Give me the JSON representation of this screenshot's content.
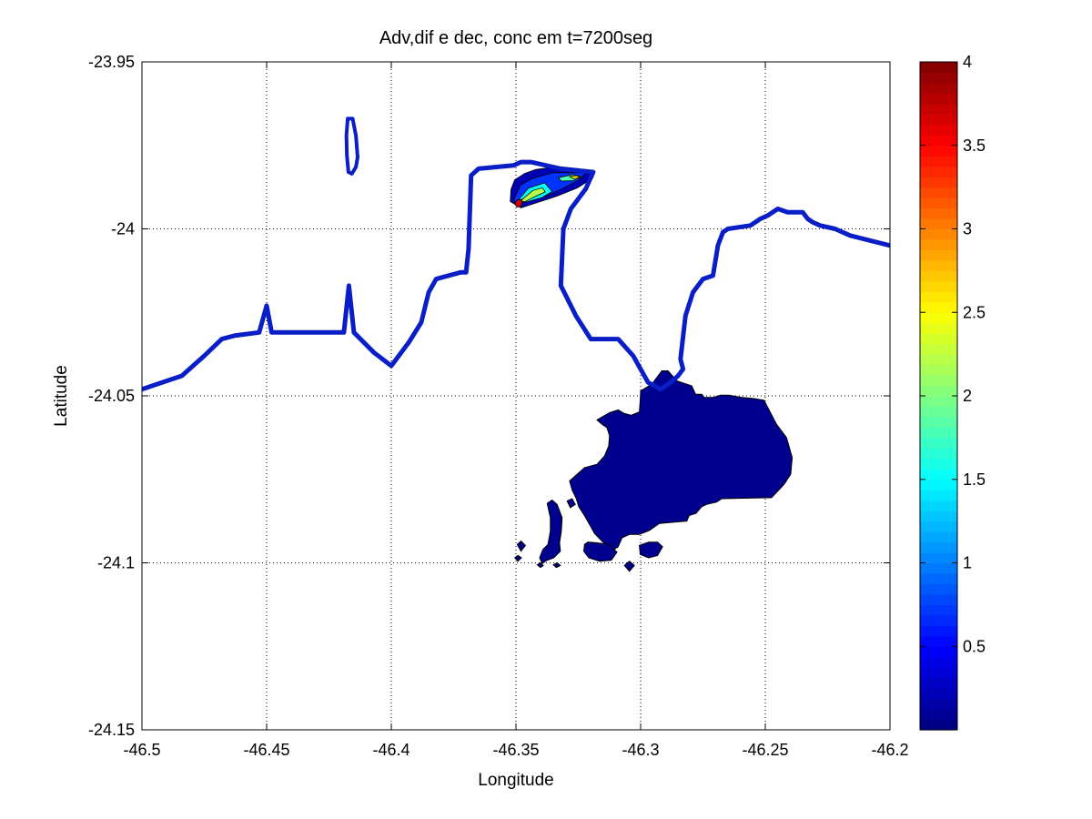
{
  "chart_data": {
    "type": "contour",
    "title": "Adv,dif e dec, conc em t=7200seg",
    "xlabel": "Longitude",
    "ylabel": "Latitude",
    "xlim": [
      -46.5,
      -46.2
    ],
    "ylim": [
      -24.15,
      -23.95
    ],
    "x_ticks": [
      -46.5,
      -46.45,
      -46.4,
      -46.35,
      -46.3,
      -46.25,
      -46.2
    ],
    "x_tick_labels": [
      "-46.5",
      "-46.45",
      "-46.4",
      "-46.35",
      "-46.3",
      "-46.25",
      "-46.2"
    ],
    "y_ticks": [
      -23.95,
      -24,
      -24.05,
      -24.1,
      -24.15
    ],
    "y_tick_labels": [
      "-23.95",
      "-24",
      "-24.05",
      "-24.1",
      "-24.15"
    ],
    "grid": true,
    "colormap": "jet",
    "colorbar": {
      "range": [
        0,
        4
      ],
      "ticks": [
        0.5,
        1,
        1.5,
        2,
        2.5,
        3,
        3.5,
        4
      ],
      "tick_labels": [
        "0.5",
        "1",
        "1.5",
        "2",
        "2.5",
        "3",
        "3.5",
        "4"
      ]
    },
    "coastline_color": "#0a1ec8",
    "coastline": [
      [
        -46.5,
        -24.048
      ],
      [
        -46.484,
        -24.044
      ],
      [
        -46.475,
        -24.038
      ],
      [
        -46.468,
        -24.033
      ],
      [
        -46.463,
        -24.032
      ],
      [
        -46.453,
        -24.031
      ],
      [
        -46.45,
        -24.023
      ],
      [
        -46.448,
        -24.031
      ],
      [
        -46.437,
        -24.031
      ],
      [
        -46.419,
        -24.031
      ],
      [
        -46.417,
        -24.017
      ],
      [
        -46.415,
        -24.031
      ],
      [
        -46.407,
        -24.037
      ],
      [
        -46.4,
        -24.041
      ],
      [
        -46.393,
        -24.034
      ],
      [
        -46.388,
        -24.028
      ],
      [
        -46.385,
        -24.019
      ],
      [
        -46.382,
        -24.015
      ],
      [
        -46.372,
        -24.013
      ],
      [
        -46.37,
        -24.013
      ],
      [
        -46.369,
        -24.006
      ],
      [
        -46.368,
        -23.984
      ],
      [
        -46.365,
        -23.982
      ],
      [
        -46.351,
        -23.981
      ],
      [
        -46.348,
        -23.98
      ],
      [
        -46.344,
        -23.98
      ],
      [
        -46.332,
        -23.982
      ],
      [
        -46.319,
        -23.983
      ],
      [
        -46.322,
        -23.988
      ],
      [
        -46.328,
        -23.994
      ],
      [
        -46.331,
        -24.0
      ],
      [
        -46.332,
        -24.017
      ],
      [
        -46.326,
        -24.026
      ],
      [
        -46.32,
        -24.033
      ],
      [
        -46.309,
        -24.033
      ],
      [
        -46.303,
        -24.038
      ],
      [
        -46.297,
        -24.046
      ],
      [
        -46.292,
        -24.048
      ],
      [
        -46.288,
        -24.046
      ],
      [
        -46.285,
        -24.044
      ],
      [
        -46.283,
        -24.042
      ],
      [
        -46.284,
        -24.039
      ],
      [
        -46.282,
        -24.026
      ],
      [
        -46.279,
        -24.019
      ],
      [
        -46.275,
        -24.015
      ],
      [
        -46.271,
        -24.014
      ],
      [
        -46.269,
        -24.005
      ],
      [
        -46.267,
        -24.001
      ],
      [
        -46.265,
        -24.0
      ],
      [
        -46.256,
        -23.999
      ],
      [
        -46.252,
        -23.997
      ],
      [
        -46.249,
        -23.996
      ],
      [
        -46.245,
        -23.994
      ],
      [
        -46.241,
        -23.995
      ],
      [
        -46.235,
        -23.995
      ],
      [
        -46.233,
        -23.997
      ],
      [
        -46.231,
        -23.998
      ],
      [
        -46.228,
        -23.999
      ],
      [
        -46.222,
        -24.0
      ],
      [
        -46.216,
        -24.002
      ],
      [
        -46.2,
        -24.005
      ]
    ],
    "islands": [
      [
        [
          -46.4175,
          -23.967
        ],
        [
          -46.4155,
          -23.967
        ],
        [
          -46.4142,
          -23.972
        ],
        [
          -46.4135,
          -23.9785
        ],
        [
          -46.4142,
          -23.9815
        ],
        [
          -46.4158,
          -23.9835
        ],
        [
          -46.4172,
          -23.983
        ],
        [
          -46.4178,
          -23.978
        ],
        [
          -46.418,
          -23.972
        ]
      ]
    ],
    "plume": [
      {
        "level": 0.2,
        "polygon": [
          [
            -46.352,
            -23.9882
          ],
          [
            -46.3505,
            -23.9853
          ],
          [
            -46.3465,
            -23.9834
          ],
          [
            -46.342,
            -23.9822
          ],
          [
            -46.3328,
            -23.9814
          ],
          [
            -46.3185,
            -23.9828
          ],
          [
            -46.3192,
            -23.9848
          ],
          [
            -46.3255,
            -23.9878
          ],
          [
            -46.3335,
            -23.9902
          ],
          [
            -46.3418,
            -23.9922
          ],
          [
            -46.348,
            -23.9937
          ],
          [
            -46.3523,
            -23.9918
          ]
        ]
      },
      {
        "level": 0.7,
        "polygon": [
          [
            -46.3508,
            -23.9912
          ],
          [
            -46.3482,
            -23.9869
          ],
          [
            -46.343,
            -23.9848
          ],
          [
            -46.335,
            -23.9832
          ],
          [
            -46.322,
            -23.9832
          ],
          [
            -46.3245,
            -23.9853
          ],
          [
            -46.331,
            -23.9878
          ],
          [
            -46.3378,
            -23.9902
          ],
          [
            -46.3455,
            -23.9918
          ],
          [
            -46.3502,
            -23.9925
          ]
        ]
      },
      {
        "level": 1.5,
        "polygon": [
          [
            -46.3495,
            -23.9918
          ],
          [
            -46.345,
            -23.9878
          ],
          [
            -46.3385,
            -23.9862
          ],
          [
            -46.3355,
            -23.9888
          ],
          [
            -46.3395,
            -23.9906
          ],
          [
            -46.3465,
            -23.9921
          ]
        ]
      },
      {
        "level": 1.8,
        "polygon": [
          [
            -46.333,
            -23.9847
          ],
          [
            -46.3272,
            -23.9837
          ],
          [
            -46.3232,
            -23.9845
          ],
          [
            -46.3275,
            -23.9856
          ],
          [
            -46.3318,
            -23.9857
          ]
        ]
      },
      {
        "level": 2.2,
        "polygon": [
          [
            -46.3485,
            -23.9918
          ],
          [
            -46.3432,
            -23.9885
          ],
          [
            -46.3395,
            -23.9877
          ],
          [
            -46.3382,
            -23.9889
          ],
          [
            -46.3428,
            -23.9905
          ],
          [
            -46.3462,
            -23.9918
          ]
        ]
      },
      {
        "level": 2.6,
        "polygon": [
          [
            -46.3285,
            -23.9844
          ],
          [
            -46.3258,
            -23.984
          ],
          [
            -46.3242,
            -23.9846
          ],
          [
            -46.3268,
            -23.985
          ]
        ]
      },
      {
        "level": 3.7,
        "polygon": [
          [
            -46.3505,
            -23.9925
          ],
          [
            -46.3495,
            -23.9913
          ],
          [
            -46.3475,
            -23.9912
          ],
          [
            -46.3478,
            -23.9932
          ],
          [
            -46.3496,
            -23.9935
          ]
        ]
      }
    ],
    "low_region": {
      "level": 0.02,
      "polygons": [
        [
          [
            -46.3,
            -24.0485
          ],
          [
            -46.2955,
            -24.0465
          ],
          [
            -46.2935,
            -24.0445
          ],
          [
            -46.2915,
            -24.0425
          ],
          [
            -46.289,
            -24.0425
          ],
          [
            -46.2855,
            -24.0455
          ],
          [
            -46.2815,
            -24.0465
          ],
          [
            -46.2795,
            -24.047
          ],
          [
            -46.278,
            -24.0495
          ],
          [
            -46.2755,
            -24.0495
          ],
          [
            -46.2745,
            -24.0505
          ],
          [
            -46.271,
            -24.0505
          ],
          [
            -46.268,
            -24.0498
          ],
          [
            -46.2645,
            -24.0498
          ],
          [
            -46.2595,
            -24.0505
          ],
          [
            -46.2548,
            -24.0508
          ],
          [
            -46.2505,
            -24.0513
          ],
          [
            -46.2455,
            -24.0585
          ],
          [
            -46.2415,
            -24.0625
          ],
          [
            -46.2392,
            -24.0685
          ],
          [
            -46.2398,
            -24.0735
          ],
          [
            -46.2425,
            -24.0765
          ],
          [
            -46.2475,
            -24.0805
          ],
          [
            -46.2545,
            -24.0806
          ],
          [
            -46.2675,
            -24.0808
          ],
          [
            -46.2695,
            -24.0818
          ],
          [
            -46.2735,
            -24.0825
          ],
          [
            -46.2755,
            -24.0832
          ],
          [
            -46.2778,
            -24.0852
          ],
          [
            -46.2805,
            -24.0858
          ],
          [
            -46.2815,
            -24.0875
          ],
          [
            -46.2865,
            -24.0878
          ],
          [
            -46.2925,
            -24.0882
          ],
          [
            -46.2965,
            -24.0903
          ],
          [
            -46.3005,
            -24.0915
          ],
          [
            -46.3045,
            -24.0915
          ],
          [
            -46.3075,
            -24.0925
          ],
          [
            -46.309,
            -24.0952
          ],
          [
            -46.3118,
            -24.0965
          ],
          [
            -46.3125,
            -24.0958
          ],
          [
            -46.3155,
            -24.0935
          ],
          [
            -46.3185,
            -24.0912
          ],
          [
            -46.3205,
            -24.0885
          ],
          [
            -46.3228,
            -24.0855
          ],
          [
            -46.3248,
            -24.0832
          ],
          [
            -46.3258,
            -24.0808
          ],
          [
            -46.3275,
            -24.0782
          ],
          [
            -46.3285,
            -24.0755
          ],
          [
            -46.3255,
            -24.0735
          ],
          [
            -46.3225,
            -24.0715
          ],
          [
            -46.3175,
            -24.0705
          ],
          [
            -46.3145,
            -24.068
          ],
          [
            -46.3128,
            -24.065
          ],
          [
            -46.3125,
            -24.062
          ],
          [
            -46.3135,
            -24.0595
          ],
          [
            -46.3155,
            -24.0585
          ],
          [
            -46.3175,
            -24.0572
          ],
          [
            -46.3125,
            -24.055
          ],
          [
            -46.309,
            -24.0542
          ],
          [
            -46.3068,
            -24.0552
          ],
          [
            -46.3038,
            -24.0558
          ],
          [
            -46.3005,
            -24.0548
          ],
          [
            -46.3002,
            -24.0515
          ]
        ],
        [
          [
            -46.3375,
            -24.0822
          ],
          [
            -46.3355,
            -24.0812
          ],
          [
            -46.3335,
            -24.0825
          ],
          [
            -46.3315,
            -24.0865
          ],
          [
            -46.3318,
            -24.0905
          ],
          [
            -46.3325,
            -24.094
          ],
          [
            -46.3322,
            -24.0965
          ],
          [
            -46.3348,
            -24.0985
          ],
          [
            -46.3375,
            -24.0992
          ],
          [
            -46.3395,
            -24.1002
          ],
          [
            -46.3405,
            -24.0985
          ],
          [
            -46.3392,
            -24.096
          ],
          [
            -46.3372,
            -24.0945
          ],
          [
            -46.3362,
            -24.0905
          ],
          [
            -46.3362,
            -24.0865
          ]
        ],
        [
          [
            -46.3225,
            -24.0945
          ],
          [
            -46.3212,
            -24.0938
          ],
          [
            -46.3175,
            -24.094
          ],
          [
            -46.3125,
            -24.0945
          ],
          [
            -46.3095,
            -24.0968
          ],
          [
            -46.3118,
            -24.0992
          ],
          [
            -46.3165,
            -24.0995
          ],
          [
            -46.3208,
            -24.0985
          ],
          [
            -46.3228,
            -24.0965
          ]
        ],
        [
          [
            -46.3005,
            -24.0948
          ],
          [
            -46.2968,
            -24.0938
          ],
          [
            -46.2932,
            -24.0938
          ],
          [
            -46.2912,
            -24.0952
          ],
          [
            -46.2932,
            -24.0978
          ],
          [
            -46.2968,
            -24.0985
          ],
          [
            -46.3002,
            -24.0975
          ]
        ],
        [
          [
            -46.3065,
            -24.1008
          ],
          [
            -46.3045,
            -24.0995
          ],
          [
            -46.3025,
            -24.1008
          ],
          [
            -46.3045,
            -24.1025
          ]
        ],
        [
          [
            -46.3415,
            -24.1006
          ],
          [
            -46.3402,
            -24.1
          ],
          [
            -46.339,
            -24.1008
          ],
          [
            -46.3402,
            -24.1014
          ]
        ],
        [
          [
            -46.335,
            -24.1006
          ],
          [
            -46.3335,
            -24.1
          ],
          [
            -46.3322,
            -24.1008
          ],
          [
            -46.3338,
            -24.1014
          ]
        ],
        [
          [
            -46.3495,
            -24.0945
          ],
          [
            -46.348,
            -24.0935
          ],
          [
            -46.3462,
            -24.0948
          ],
          [
            -46.348,
            -24.0965
          ]
        ],
        [
          [
            -46.3505,
            -24.0985
          ],
          [
            -46.3492,
            -24.0978
          ],
          [
            -46.3478,
            -24.0985
          ],
          [
            -46.3492,
            -24.0995
          ]
        ],
        [
          [
            -46.3295,
            -24.0815
          ],
          [
            -46.3275,
            -24.0808
          ],
          [
            -46.3262,
            -24.0825
          ],
          [
            -46.3282,
            -24.0835
          ]
        ]
      ]
    }
  }
}
